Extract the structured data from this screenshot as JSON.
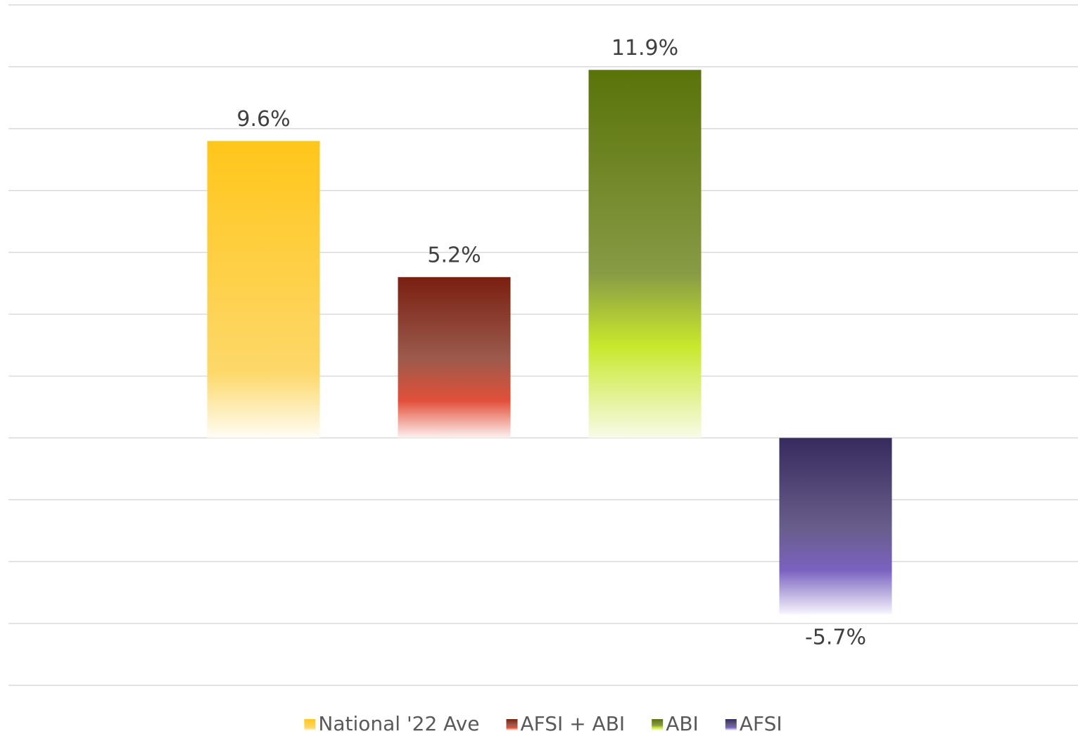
{
  "chart_data": {
    "type": "bar",
    "categories": [
      null
    ],
    "series": [
      {
        "name": "National '22 Ave",
        "color": "#ffc61a",
        "values": [
          9.6
        ],
        "value_labels": [
          "9.6%"
        ]
      },
      {
        "name": "AFSI + ABI",
        "color": "#7a1f10",
        "values": [
          5.2
        ],
        "value_labels": [
          "5.2%"
        ]
      },
      {
        "name": "ABI",
        "color": "#5a7309",
        "values": [
          11.9
        ],
        "value_labels": [
          "11.9%"
        ]
      },
      {
        "name": "AFSI",
        "color": "#372a5e",
        "values": [
          -5.7
        ],
        "value_labels": [
          "-5.7%"
        ]
      }
    ],
    "ylim": [
      -8,
      14
    ],
    "yticks": [
      -8,
      -6,
      -4,
      -2,
      0,
      2,
      4,
      6,
      8,
      10,
      12,
      14
    ],
    "grid": true,
    "legend": "bottom"
  }
}
